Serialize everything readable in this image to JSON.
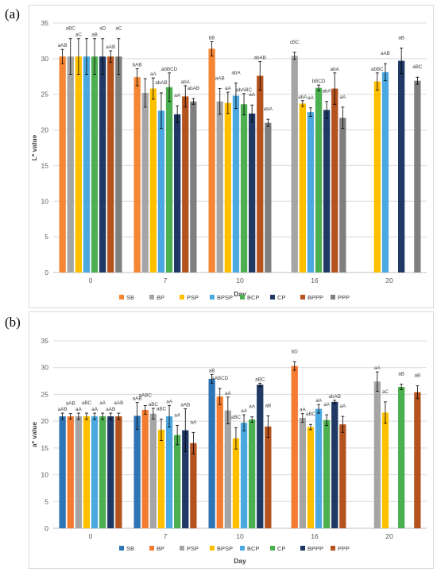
{
  "panel_labels": [
    "(a)",
    "(b)"
  ],
  "chart_data": [
    {
      "type": "bar",
      "panel": "(a)",
      "title": "",
      "xlabel": "Day",
      "ylabel": "L* value",
      "ylim": [
        0,
        35
      ],
      "yticks": [
        0,
        5,
        10,
        15,
        20,
        25,
        30,
        35
      ],
      "grid": true,
      "legend_position": "bottom",
      "categories": [
        "0",
        "7",
        "10",
        "16",
        "20"
      ],
      "series": [
        {
          "name": "SB",
          "color": "#f58634",
          "values": [
            30.3,
            27.4,
            31.4,
            null,
            null
          ],
          "errors": [
            1.0,
            1.2,
            1.0,
            null,
            null
          ],
          "labels": [
            "aAB",
            "bAB",
            "bB",
            "",
            ""
          ]
        },
        {
          "name": "BP",
          "color": "#a5a5a5",
          "values": [
            30.3,
            25.2,
            24.0,
            30.4,
            null
          ],
          "errors": [
            2.5,
            2.0,
            1.8,
            0.5,
            null
          ],
          "labels": [
            "aBC",
            "",
            "aAB",
            "cBC",
            ""
          ]
        },
        {
          "name": "PSP",
          "color": "#ffc000",
          "values": [
            30.3,
            25.8,
            23.8,
            23.7,
            26.8
          ],
          "errors": [
            2.5,
            1.5,
            1.5,
            0.4,
            1.2
          ],
          "labels": [
            "aC",
            "aA",
            "aA",
            "abA",
            "abBC"
          ]
        },
        {
          "name": "BPSP",
          "color": "#4ba8e0",
          "values": [
            30.3,
            22.7,
            24.8,
            22.5,
            28.1
          ],
          "errors": [
            2.5,
            2.5,
            1.8,
            0.6,
            1.2
          ],
          "labels": [
            "",
            "abAB",
            "abA",
            "aA",
            "aAB"
          ]
        },
        {
          "name": "BCP",
          "color": "#4caf50",
          "values": [
            30.3,
            26.0,
            23.6,
            25.9,
            null
          ],
          "errors": [
            2.5,
            2.0,
            1.5,
            0.4,
            null
          ],
          "labels": [
            "aB",
            "abBCD",
            "abABC",
            "bBCD",
            ""
          ]
        },
        {
          "name": "CP",
          "color": "#1f3864",
          "values": [
            30.3,
            22.2,
            22.3,
            22.8,
            29.7
          ],
          "errors": [
            2.5,
            1.2,
            1.2,
            1.2,
            1.8
          ],
          "labels": [
            "aD",
            "aA",
            "aA",
            "abA",
            "aB"
          ]
        },
        {
          "name": "BPPP",
          "color": "#b5531f",
          "values": [
            30.3,
            24.7,
            27.6,
            25.8,
            null
          ],
          "errors": [
            0.8,
            1.5,
            2.0,
            2.2,
            null
          ],
          "labels": [
            "aAB",
            "abA",
            "abAB",
            "abA",
            ""
          ]
        },
        {
          "name": "PPP",
          "color": "#7f7f7f",
          "values": [
            30.3,
            24.0,
            21.0,
            21.7,
            26.9
          ],
          "errors": [
            2.5,
            0.4,
            0.5,
            1.5,
            0.5
          ],
          "labels": [
            "aC",
            "abAB",
            "abA",
            "aA",
            "aBC"
          ]
        }
      ]
    },
    {
      "type": "bar",
      "panel": "(b)",
      "title": "",
      "xlabel": "Day",
      "ylabel": "a* value",
      "ylim": [
        0,
        35
      ],
      "yticks": [
        0,
        5,
        10,
        15,
        20,
        25,
        30,
        35
      ],
      "grid": true,
      "legend_position": "bottom",
      "categories": [
        "0",
        "7",
        "10",
        "16",
        "20"
      ],
      "series": [
        {
          "name": "SB",
          "color": "#2e75b6",
          "values": [
            20.9,
            21.0,
            27.9,
            null,
            null
          ],
          "errors": [
            0.6,
            2.5,
            0.8,
            null,
            null
          ],
          "labels": [
            "aAB",
            "aAB",
            "aB",
            "",
            ""
          ]
        },
        {
          "name": "BP",
          "color": "#f47c30",
          "values": [
            20.9,
            22.1,
            24.6,
            30.3,
            null
          ],
          "errors": [
            0.5,
            0.8,
            1.5,
            0.8,
            null
          ],
          "labels": [
            "aAB",
            "aABC",
            "aABCD",
            "bD",
            ""
          ]
        },
        {
          "name": "PSP",
          "color": "#a5a5a5",
          "values": [
            20.9,
            21.4,
            22.0,
            20.6,
            27.4
          ],
          "errors": [
            0.6,
            1.0,
            2.5,
            0.8,
            1.8
          ],
          "labels": [
            "aA",
            "aBC",
            "aA",
            "aA",
            "aA"
          ]
        },
        {
          "name": "BPSP",
          "color": "#ffc000",
          "values": [
            20.9,
            18.4,
            16.8,
            18.9,
            21.6
          ],
          "errors": [
            0.6,
            2.0,
            2.0,
            0.5,
            2.0
          ],
          "labels": [
            "aBC",
            "aBC",
            "aBC",
            "aBC",
            "aC"
          ]
        },
        {
          "name": "BCP",
          "color": "#4ba8e0",
          "values": [
            20.9,
            20.9,
            19.7,
            22.3,
            null
          ],
          "errors": [
            0.6,
            2.0,
            1.5,
            0.8,
            null
          ],
          "labels": [
            "aA",
            "aA",
            "aA",
            "aA",
            ""
          ]
        },
        {
          "name": "CP",
          "color": "#4caf50",
          "values": [
            20.9,
            17.4,
            20.3,
            20.2,
            26.4
          ],
          "errors": [
            0.6,
            1.8,
            0.5,
            1.0,
            0.5
          ],
          "labels": [
            "aA",
            "aA",
            "aA",
            "aA",
            "aB"
          ]
        },
        {
          "name": "BPPP",
          "color": "#1f3864",
          "values": [
            20.9,
            18.3,
            26.8,
            23.6,
            null
          ],
          "errors": [
            0.6,
            4.0,
            0.3,
            0.3,
            null
          ],
          "labels": [
            "aAB",
            "aAB",
            "aBC",
            "abAB",
            ""
          ]
        },
        {
          "name": "PPP",
          "color": "#b5531f",
          "values": [
            20.9,
            15.9,
            19.0,
            19.4,
            25.4
          ],
          "errors": [
            0.6,
            2.0,
            2.0,
            1.5,
            1.2
          ],
          "labels": [
            "aAB",
            "aA",
            "aB",
            "aA",
            "aB"
          ]
        }
      ]
    }
  ]
}
